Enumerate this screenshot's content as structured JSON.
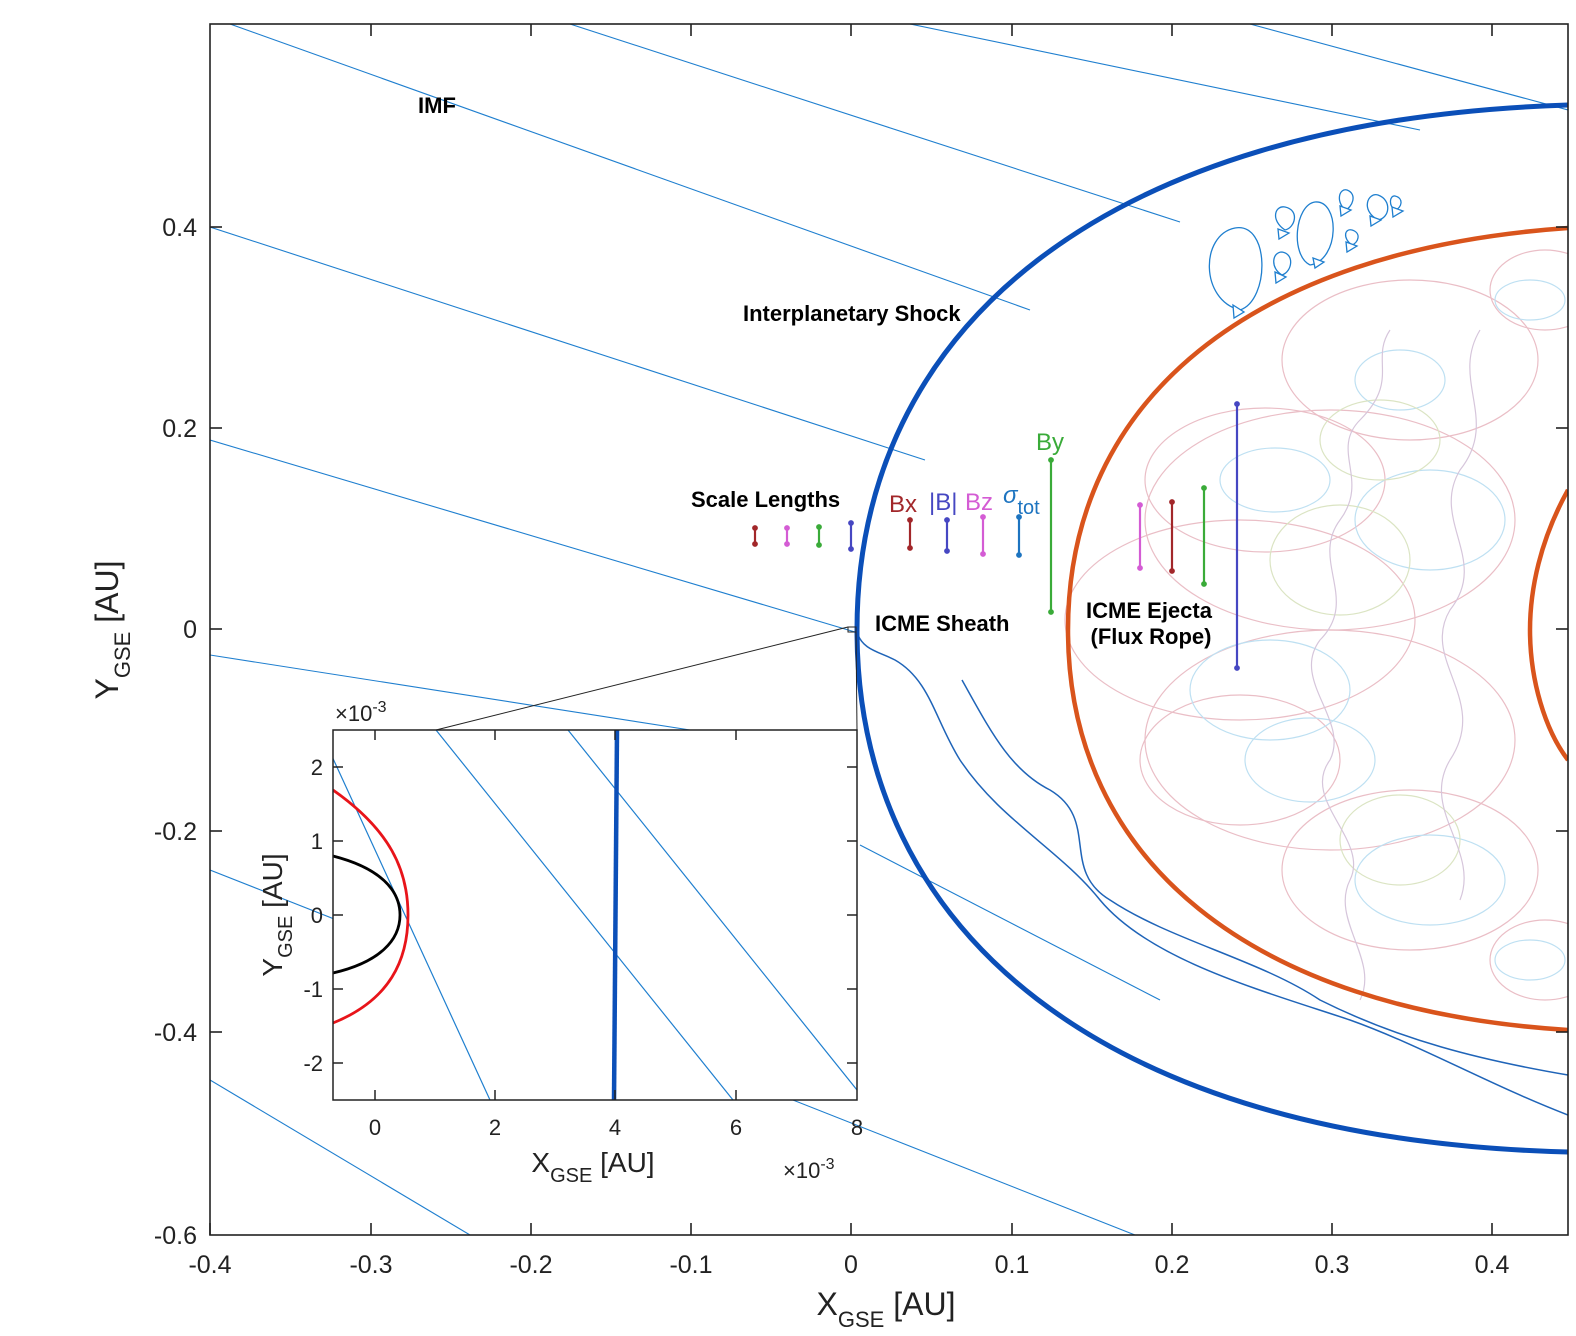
{
  "main": {
    "x_label": {
      "main": "X",
      "sub": "GSE",
      "unit": " [AU]"
    },
    "y_label": {
      "main": "Y",
      "sub": "GSE",
      "unit": " [AU]"
    },
    "x_ticks": [
      "-0.4",
      "-0.3",
      "-0.2",
      "-0.1",
      "0",
      "0.1",
      "0.2",
      "0.3",
      "0.4"
    ],
    "y_ticks": [
      "0.4",
      "0.2",
      "0",
      "-0.2",
      "-0.4",
      "-0.6"
    ]
  },
  "annotations": {
    "imf": "IMF",
    "shock": "Interplanetary Shock",
    "scale_lengths": "Scale Lengths",
    "sheath": "ICME Sheath",
    "ejecta_1": "ICME Ejecta",
    "ejecta_2": "(Flux Rope)"
  },
  "scale_labels": {
    "bx": "Bx",
    "b_mag": "|B|",
    "bz": "Bz",
    "by": "By",
    "sigma": "σ",
    "sigma_sub": "tot"
  },
  "inset": {
    "x_ticks": [
      "0",
      "2",
      "4",
      "6",
      "8"
    ],
    "y_ticks": [
      "2",
      "1",
      "0",
      "-1",
      "-2"
    ],
    "x_label": {
      "main": "X",
      "sub": "GSE",
      "unit": " [AU]"
    },
    "y_label": {
      "main": "Y",
      "sub": "GSE",
      "unit": " [AU]"
    },
    "exponent_prefix": "×10",
    "exponent": "-3"
  },
  "colors": {
    "imf_lines": "#1f7fcf",
    "shock": "#0b4fb8",
    "ejecta": "#d9541c",
    "bx": "#a2272a",
    "b_mag": "#4647c2",
    "bz": "#d45cd4",
    "by": "#3aab39",
    "sigma": "#1d74c0",
    "inset_red": "#e8141a",
    "inset_black": "#000000"
  }
}
